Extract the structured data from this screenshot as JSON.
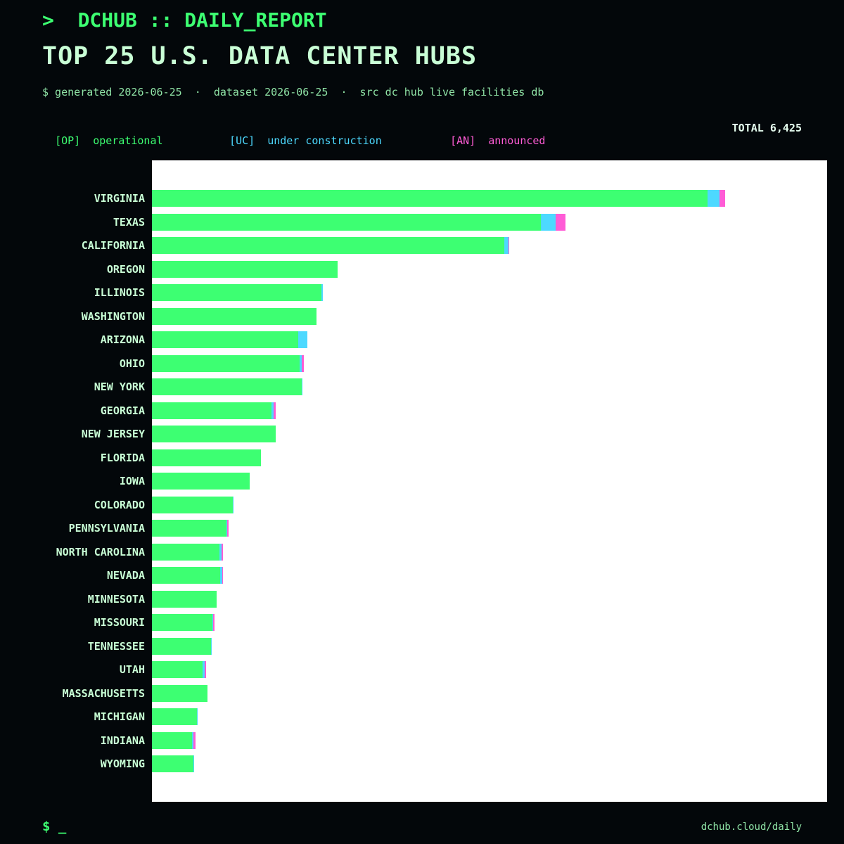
{
  "header": {
    "prompt": ">  DCHUB :: DAILY_REPORT",
    "title": "TOP 25 U.S. DATA CENTER HUBS",
    "meta": "$ generated 2026-06-25  ·  dataset 2026-06-25  ·  src dc hub live facilities db"
  },
  "legend": {
    "op": {
      "tag": "[OP]",
      "label": "operational",
      "color": "#3dff72"
    },
    "uc": {
      "tag": "[UC]",
      "label": "under construction",
      "color": "#4dd9ff"
    },
    "an": {
      "tag": "[AN]",
      "label": "announced",
      "color": "#ff5cd6"
    }
  },
  "total": "TOTAL 6,425",
  "footer": {
    "prompt": "$ _",
    "url": "dchub.cloud/daily"
  },
  "chart_data": {
    "type": "bar",
    "orientation": "horizontal",
    "stacked": true,
    "categories": [
      "VIRGINIA",
      "TEXAS",
      "CALIFORNIA",
      "OREGON",
      "ILLINOIS",
      "WASHINGTON",
      "ARIZONA",
      "OHIO",
      "NEW YORK",
      "GEORGIA",
      "NEW JERSEY",
      "FLORIDA",
      "IOWA",
      "COLORADO",
      "PENNSYLVANIA",
      "NORTH CAROLINA",
      "NEVADA",
      "MINNESOTA",
      "MISSOURI",
      "TENNESSEE",
      "UTAH",
      "MASSACHUSETTS",
      "MICHIGAN",
      "INDIANA",
      "WYOMING"
    ],
    "series": [
      {
        "name": "operational",
        "color": "#3dff72",
        "values": [
          864,
          605,
          548,
          289,
          264,
          256,
          228,
          230,
          233,
          186,
          193,
          170,
          152,
          126,
          116,
          105,
          106,
          101,
          94,
          92,
          79,
          86,
          70,
          62,
          65
        ]
      },
      {
        "name": "under construction",
        "color": "#4dd9ff",
        "values": [
          19,
          23,
          6,
          0,
          2,
          0,
          14,
          3,
          1,
          3,
          0,
          0,
          0,
          1,
          1,
          3,
          3,
          0,
          1,
          1,
          3,
          0,
          1,
          3,
          1
        ]
      },
      {
        "name": "announced",
        "color": "#ff5cd6",
        "values": [
          8,
          15,
          1,
          0,
          0,
          0,
          0,
          3,
          0,
          4,
          0,
          0,
          0,
          0,
          2,
          2,
          1,
          0,
          2,
          0,
          2,
          0,
          0,
          3,
          0
        ]
      }
    ],
    "xlim": [
      0,
      1050
    ],
    "grid": false,
    "legend_position": "top"
  }
}
